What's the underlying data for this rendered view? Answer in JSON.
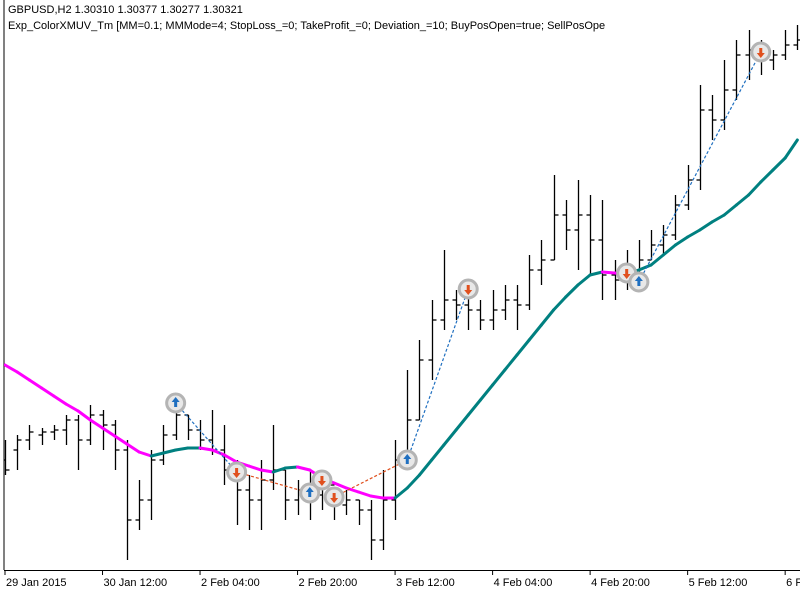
{
  "chart_data": {
    "type": "ohlc",
    "title": "GBPUSD,H2  1.30310 1.30377 1.30277 1.30321",
    "subtitle": "Exp_ColorXMUV_Tm [MM=0.1; MMMode=4; StopLoss_=0; TakeProfit_=0; Deviation_=10; BuyPosOpen=true; SellPosOpe",
    "categories": [
      "29 Jan 2015",
      null,
      null,
      null,
      null,
      null,
      null,
      null,
      "30 Jan 12:00",
      null,
      null,
      null,
      null,
      null,
      null,
      null,
      "2 Feb 04:00",
      null,
      null,
      null,
      null,
      null,
      null,
      null,
      "2 Feb 20:00",
      null,
      null,
      null,
      null,
      null,
      null,
      null,
      "3 Feb 12:00",
      null,
      null,
      null,
      null,
      null,
      null,
      null,
      "4 Feb 04:00",
      null,
      null,
      null,
      null,
      null,
      null,
      null,
      "4 Feb 20:00",
      null,
      null,
      null,
      null,
      null,
      null,
      null,
      "5 Feb 12:00",
      null,
      null,
      null,
      null,
      null,
      null,
      null,
      "6 F",
      null
    ],
    "open": [
      1.501,
      1.502,
      1.503,
      1.5035,
      1.5038,
      1.504,
      1.505,
      1.503,
      1.5055,
      1.5045,
      1.502,
      1.495,
      1.497,
      1.501,
      1.5035,
      1.5055,
      1.504,
      1.503,
      1.502,
      1.5,
      1.498,
      1.497,
      1.499,
      1.5,
      1.497,
      1.498,
      1.4975,
      1.4985,
      1.4965,
      1.497,
      1.496,
      1.493,
      1.497,
      1.501,
      1.505,
      1.511,
      1.515,
      1.517,
      1.5165,
      1.516,
      1.515,
      1.516,
      1.517,
      1.5165,
      1.52,
      1.521,
      1.5255,
      1.524,
      1.5255,
      1.523,
      1.5195,
      1.519,
      1.52,
      1.521,
      1.5225,
      1.5235,
      1.5265,
      1.529,
      1.536,
      1.535,
      1.538,
      1.5415,
      1.542,
      1.541,
      1.5415,
      1.5425
    ],
    "high": [
      1.503,
      1.5035,
      1.5045,
      1.5042,
      1.5045,
      1.5055,
      1.5055,
      1.5065,
      1.506,
      1.505,
      1.503,
      1.499,
      1.502,
      1.5045,
      1.507,
      1.5055,
      1.505,
      1.506,
      1.5045,
      1.501,
      1.4995,
      1.501,
      1.5045,
      1.5,
      1.499,
      1.5,
      1.5,
      1.498,
      1.498,
      1.497,
      1.497,
      1.5,
      1.503,
      1.51,
      1.513,
      1.517,
      1.522,
      1.518,
      1.519,
      1.517,
      1.518,
      1.5185,
      1.5185,
      1.5215,
      1.523,
      1.5295,
      1.527,
      1.529,
      1.5275,
      1.527,
      1.521,
      1.522,
      1.523,
      1.524,
      1.5245,
      1.5275,
      1.5305,
      1.5385,
      1.5375,
      1.541,
      1.543,
      1.544,
      1.543,
      1.542,
      1.544,
      1.5445
    ],
    "low": [
      1.4995,
      1.5,
      1.502,
      1.5025,
      1.503,
      1.5025,
      1.5,
      1.5025,
      1.502,
      1.5,
      1.491,
      1.494,
      1.495,
      1.5005,
      1.503,
      1.503,
      1.502,
      1.5015,
      1.4985,
      1.4945,
      1.494,
      1.494,
      1.498,
      1.495,
      1.4955,
      1.495,
      1.496,
      1.495,
      1.4955,
      1.4945,
      1.491,
      1.492,
      1.495,
      1.501,
      1.505,
      1.509,
      1.514,
      1.515,
      1.514,
      1.514,
      1.514,
      1.515,
      1.514,
      1.516,
      1.5185,
      1.521,
      1.522,
      1.52,
      1.5195,
      1.517,
      1.517,
      1.518,
      1.5185,
      1.521,
      1.5215,
      1.523,
      1.526,
      1.528,
      1.533,
      1.534,
      1.537,
      1.539,
      1.5395,
      1.54,
      1.541,
      1.542
    ],
    "close": [
      1.5,
      1.503,
      1.5038,
      1.5038,
      1.504,
      1.505,
      1.503,
      1.5055,
      1.5045,
      1.502,
      1.495,
      1.497,
      1.501,
      1.5035,
      1.5055,
      1.504,
      1.503,
      1.502,
      1.5,
      1.498,
      1.497,
      1.499,
      1.5,
      1.497,
      1.498,
      1.4975,
      1.4985,
      1.4965,
      1.497,
      1.496,
      1.493,
      1.497,
      1.501,
      1.505,
      1.511,
      1.515,
      1.517,
      1.5165,
      1.516,
      1.515,
      1.516,
      1.517,
      1.5165,
      1.52,
      1.521,
      1.5255,
      1.524,
      1.5255,
      1.523,
      1.5195,
      1.519,
      1.52,
      1.521,
      1.5225,
      1.5235,
      1.5265,
      1.529,
      1.536,
      1.535,
      1.538,
      1.5415,
      1.542,
      1.541,
      1.5415,
      1.5425,
      1.543
    ],
    "color": "#000000",
    "ma": {
      "values": [
        1.5105,
        1.5098,
        1.509,
        1.5082,
        1.5074,
        1.5066,
        1.5059,
        1.505,
        1.5042,
        1.5034,
        1.5026,
        1.5018,
        1.5014,
        1.5017,
        1.502,
        1.5022,
        1.5022,
        1.502,
        1.5015,
        1.5008,
        1.5004,
        1.5,
        1.4998,
        1.5002,
        1.5003,
        1.5,
        1.4992,
        1.4987,
        1.4982,
        1.4978,
        1.4974,
        1.4972,
        1.4972,
        1.4982,
        1.4995,
        1.501,
        1.5025,
        1.504,
        1.5055,
        1.507,
        1.5085,
        1.51,
        1.5115,
        1.513,
        1.5145,
        1.516,
        1.5173,
        1.5185,
        1.5195,
        1.5198,
        1.5197,
        1.5196,
        1.52,
        1.5205,
        1.5215,
        1.5225,
        1.5233,
        1.524,
        1.5248,
        1.5255,
        1.5265,
        1.5275,
        1.5288,
        1.53,
        1.5312,
        1.533
      ],
      "up_color": "#008080",
      "down_color": "#ff00ff"
    },
    "trades": [
      {
        "side": "buy",
        "bar": 14,
        "price": 1.5067
      },
      {
        "side": "sell",
        "bar": 19,
        "price": 1.4998
      },
      {
        "side": "buy",
        "bar": 25,
        "price": 1.4977
      },
      {
        "side": "sell",
        "bar": 26,
        "price": 1.499
      },
      {
        "side": "sell",
        "bar": 27,
        "price": 1.4973
      },
      {
        "side": "buy",
        "bar": 33,
        "price": 1.501
      },
      {
        "side": "sell",
        "bar": 38,
        "price": 1.5181
      },
      {
        "side": "sell",
        "bar": 51,
        "price": 1.5197
      },
      {
        "side": "buy",
        "bar": 52,
        "price": 1.5188
      },
      {
        "side": "sell",
        "bar": 62,
        "price": 1.5418
      }
    ],
    "buy_color": "#1f6fc0",
    "sell_color": "#e0501e",
    "ylim": [
      1.49,
      1.547
    ]
  }
}
